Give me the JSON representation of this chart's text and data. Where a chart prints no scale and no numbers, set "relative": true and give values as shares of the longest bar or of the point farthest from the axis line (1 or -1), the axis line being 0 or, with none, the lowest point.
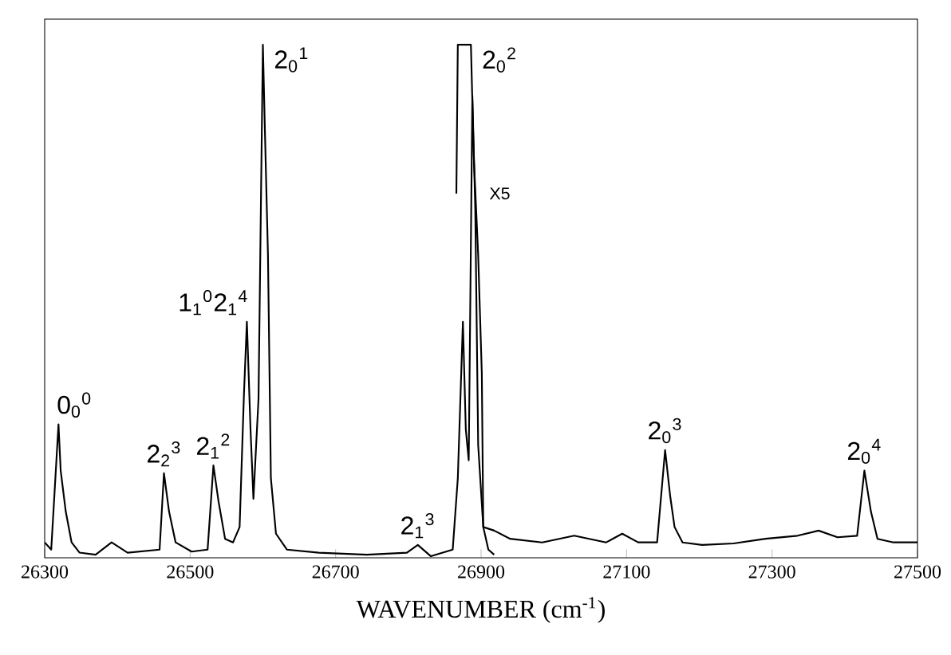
{
  "chart_data": {
    "type": "line",
    "relative": true,
    "xlabel": "WAVENUMBER (cm$^{-1}$)",
    "xlim": [
      26300,
      27500
    ],
    "xticks": [
      26300,
      26500,
      26700,
      26900,
      27100,
      27300,
      27500
    ],
    "grid": false,
    "legend": false,
    "marker": "none",
    "line_style": "solid",
    "series": [
      {
        "color": "#000000",
        "x": [
          26300,
          26309,
          26319,
          26322,
          26329,
          26337,
          26348,
          26370,
          26392,
          26414,
          26458,
          26464,
          26471,
          26480,
          26502,
          26524,
          26532,
          26539,
          26548,
          26559,
          26568,
          26574,
          26578,
          26583,
          26587,
          26594,
          26600,
          26603,
          26607,
          26611,
          26618,
          26633,
          26677,
          26743,
          26798,
          26813,
          26831,
          26861,
          26868,
          26875,
          26879,
          26883,
          26888,
          26892,
          26896,
          26903,
          26910,
          26918
        ],
        "values": [
          0.03,
          0.016,
          0.26,
          0.17,
          0.09,
          0.03,
          0.01,
          0.006,
          0.03,
          0.01,
          0.016,
          0.165,
          0.09,
          0.03,
          0.012,
          0.016,
          0.18,
          0.11,
          0.037,
          0.03,
          0.06,
          0.32,
          0.46,
          0.25,
          0.115,
          0.31,
          1,
          0.82,
          0.59,
          0.155,
          0.047,
          0.016,
          0.01,
          0.006,
          0.01,
          0.025,
          0.003,
          0.016,
          0.155,
          0.46,
          0.25,
          0.19,
          0.9,
          0.68,
          0.22,
          0.06,
          0.016,
          0.006
        ]
      },
      {
        "name": "X5",
        "color": "#000000",
        "x": [
          26866,
          26868,
          26886,
          26890,
          26896,
          26901,
          26903,
          26918,
          26940,
          26984,
          27028,
          27072,
          27094,
          27116,
          27142,
          27153,
          27160,
          27166,
          27177,
          27204,
          27247,
          27291,
          27335,
          27364,
          27390,
          27417,
          27427,
          27436,
          27445,
          27467,
          27500
        ],
        "values": [
          0.71,
          1,
          1,
          0.78,
          0.59,
          0.36,
          0.06,
          0.053,
          0.037,
          0.03,
          0.043,
          0.03,
          0.047,
          0.03,
          0.03,
          0.21,
          0.12,
          0.06,
          0.03,
          0.025,
          0.028,
          0.037,
          0.043,
          0.053,
          0.04,
          0.043,
          0.17,
          0.09,
          0.037,
          0.03,
          0.03
        ]
      }
    ],
    "annotations": [
      {
        "text": "0$_{0}$$^{0}$",
        "x": 26319,
        "y": 0.26
      },
      {
        "text": "2$_{2}$$^{3}$",
        "x": 26464,
        "y": 0.165
      },
      {
        "text": "2$_{1}$$^{2}$",
        "x": 26532,
        "y": 0.18
      },
      {
        "text": "1$_{1}$$^{0}$2$_{1}$$^{4}$",
        "x": 26578,
        "y": 0.46
      },
      {
        "text": "2$_{0}$$^{1}$",
        "x": 26600,
        "y": 1
      },
      {
        "text": "2$_{1}$$^{3}$",
        "x": 26813,
        "y": 0.025
      },
      {
        "text": "2$_{0}$$^{2}$",
        "x": 26886,
        "y": 1
      },
      {
        "text": "2$_{0}$$^{3}$",
        "x": 27153,
        "y": 0.21
      },
      {
        "text": "2$_{0}$$^{4}$",
        "x": 27427,
        "y": 0.17
      }
    ]
  }
}
